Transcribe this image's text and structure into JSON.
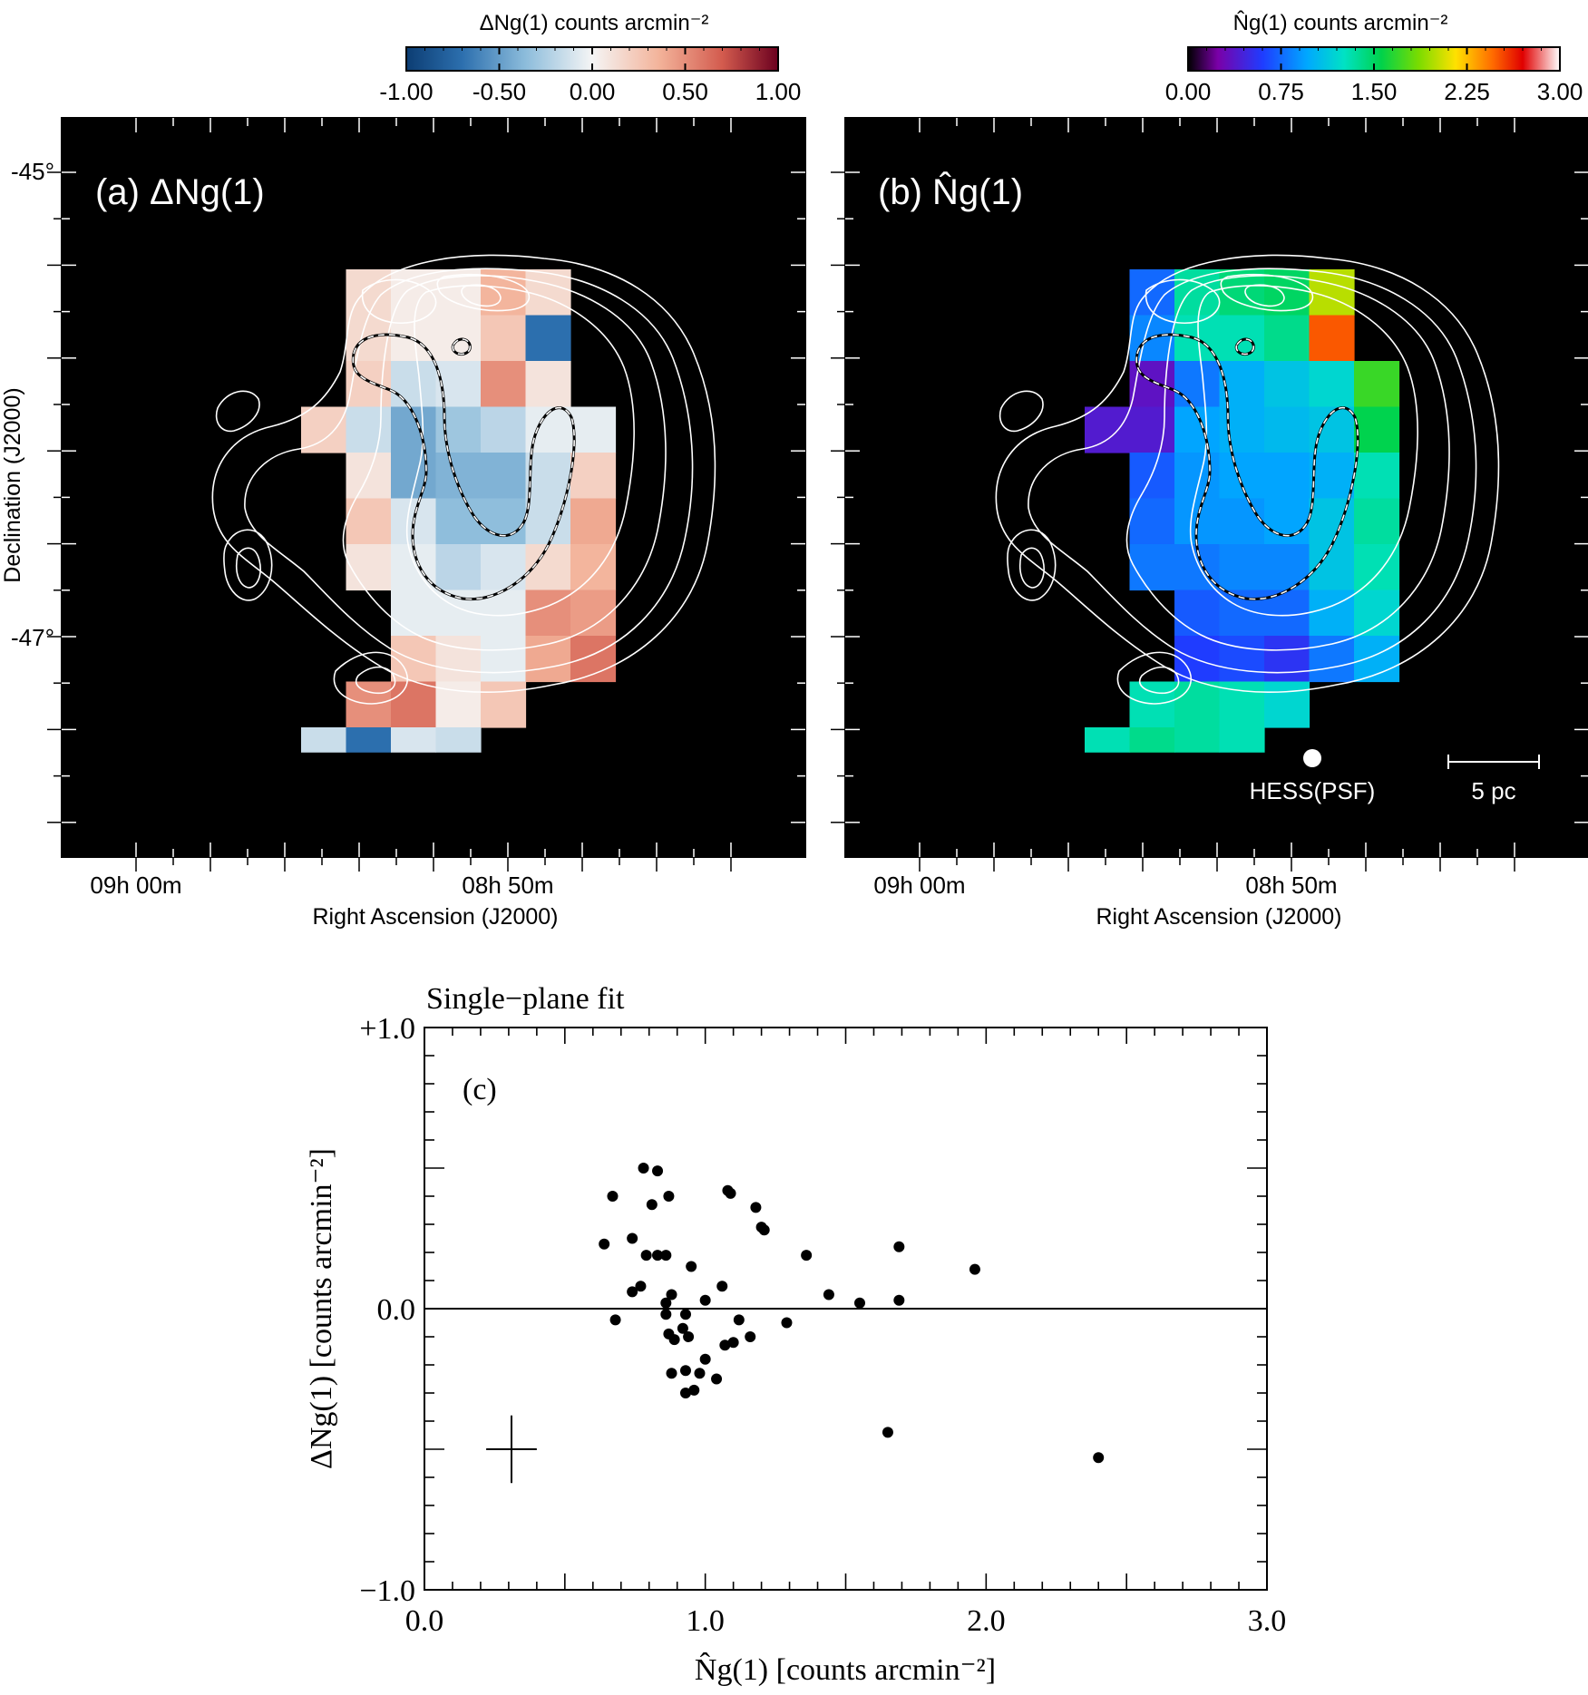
{
  "panel_a": {
    "colorbar_label": "ΔNg(1) counts arcmin⁻²",
    "colorbar_ticks": [
      "-1.00",
      "-0.50",
      "0.00",
      "0.50",
      "1.00"
    ],
    "colorbar_range": [
      -1.0,
      1.0
    ],
    "panel_label": "(a) ΔNg(1)",
    "dec_labels": [
      "-45°",
      "-47°"
    ],
    "ra_labels": [
      "09h 00m",
      "08h 50m"
    ],
    "xlabel": "Right Ascension (J2000)",
    "ylabel": "Declination (J2000)"
  },
  "panel_b": {
    "colorbar_label": "N̂g(1) counts arcmin⁻²",
    "colorbar_ticks": [
      "0.00",
      "0.75",
      "1.50",
      "2.25",
      "3.00"
    ],
    "colorbar_range": [
      0.0,
      3.0
    ],
    "panel_label": "(b) N̂g(1)",
    "ra_labels": [
      "09h 00m",
      "08h 50m"
    ],
    "xlabel": "Right Ascension (J2000)",
    "psf_label": "HESS(PSF)",
    "scale_label": "5 pc"
  },
  "colors": {
    "map_background": "#000000",
    "contour": "#ffffff"
  },
  "maps": {
    "columns": 7,
    "rows": 10,
    "delta_grid": [
      [
        null,
        0.15,
        0.05,
        0.05,
        0.35,
        0.15,
        null
      ],
      [
        null,
        0.15,
        0.05,
        0.05,
        0.25,
        -0.7,
        null
      ],
      [
        null,
        0.2,
        -0.15,
        -0.1,
        0.5,
        0.1,
        null
      ],
      [
        0.2,
        -0.15,
        -0.45,
        -0.3,
        -0.2,
        -0.05,
        -0.05
      ],
      [
        null,
        0.1,
        -0.45,
        -0.4,
        -0.4,
        -0.15,
        0.2
      ],
      [
        null,
        0.25,
        -0.1,
        -0.35,
        -0.35,
        -0.15,
        0.4
      ],
      [
        null,
        0.1,
        -0.05,
        -0.2,
        -0.1,
        0.15,
        0.35
      ],
      [
        null,
        null,
        -0.05,
        -0.05,
        -0.05,
        0.5,
        0.45
      ],
      [
        null,
        null,
        0.25,
        0.1,
        -0.05,
        0.4,
        0.6
      ],
      [
        null,
        0.5,
        0.6,
        0.05,
        0.25,
        null,
        null
      ]
    ],
    "nhat_grid": [
      [
        null,
        0.75,
        1.35,
        1.45,
        1.5,
        2.0,
        null
      ],
      [
        null,
        0.85,
        1.3,
        1.3,
        1.4,
        2.5,
        null
      ],
      [
        null,
        0.35,
        0.8,
        1.0,
        1.1,
        1.2,
        1.7
      ],
      [
        0.4,
        0.4,
        0.95,
        1.0,
        1.05,
        1.1,
        1.55
      ],
      [
        null,
        0.7,
        0.9,
        0.95,
        0.95,
        1.0,
        1.3
      ],
      [
        null,
        0.75,
        0.9,
        0.9,
        0.95,
        1.1,
        1.35
      ],
      [
        null,
        0.8,
        0.8,
        0.85,
        0.85,
        1.1,
        1.3
      ],
      [
        null,
        null,
        0.7,
        0.75,
        0.75,
        1.0,
        1.2
      ],
      [
        null,
        null,
        0.6,
        0.65,
        0.55,
        0.8,
        1.0
      ],
      [
        null,
        1.3,
        1.35,
        1.3,
        1.2,
        null,
        null
      ]
    ],
    "extra_cells_delta": [
      {
        "row": 10,
        "col": 0,
        "value": -0.15
      },
      {
        "row": 10,
        "col": 1,
        "value": -0.7
      },
      {
        "row": 10,
        "col": 2,
        "value": -0.1
      },
      {
        "row": 10,
        "col": 3,
        "value": -0.15
      }
    ],
    "extra_cells_nhat": [
      {
        "row": 10,
        "col": 0,
        "value": 1.3
      },
      {
        "row": 10,
        "col": 1,
        "value": 1.4
      },
      {
        "row": 10,
        "col": 2,
        "value": 1.35
      },
      {
        "row": 10,
        "col": 3,
        "value": 1.3
      }
    ]
  },
  "panel_c": {
    "title": "Single−plane fit",
    "panel_label": "(c)",
    "xlabel": "N̂g(1) [counts arcmin⁻²]",
    "ylabel": "ΔNg(1) [counts arcmin⁻²]",
    "x_ticks": [
      "0.0",
      "1.0",
      "2.0",
      "3.0"
    ],
    "y_ticks": [
      "+1.0",
      "0.0",
      "−1.0"
    ]
  },
  "chart_data": {
    "type": "scatter",
    "title": "Single−plane fit",
    "xlabel": "N̂g(1) [counts arcmin⁻²]",
    "ylabel": "ΔNg(1) [counts arcmin⁻²]",
    "xlim": [
      0.0,
      3.0
    ],
    "ylim": [
      -1.0,
      1.0
    ],
    "reference_line_y": 0.0,
    "error_bar": {
      "x": 0.31,
      "y": -0.5,
      "xerr": 0.09,
      "yerr": 0.12
    },
    "points": [
      [
        0.64,
        0.23
      ],
      [
        0.67,
        0.4
      ],
      [
        0.68,
        -0.04
      ],
      [
        0.74,
        0.25
      ],
      [
        0.74,
        0.06
      ],
      [
        0.77,
        0.08
      ],
      [
        0.78,
        0.5
      ],
      [
        0.79,
        0.19
      ],
      [
        0.81,
        0.37
      ],
      [
        0.83,
        0.19
      ],
      [
        0.83,
        0.49
      ],
      [
        0.86,
        0.02
      ],
      [
        0.86,
        0.19
      ],
      [
        0.86,
        -0.02
      ],
      [
        0.87,
        0.4
      ],
      [
        0.87,
        -0.09
      ],
      [
        0.88,
        -0.23
      ],
      [
        0.88,
        0.05
      ],
      [
        0.89,
        -0.11
      ],
      [
        0.92,
        -0.07
      ],
      [
        0.93,
        -0.02
      ],
      [
        0.93,
        -0.22
      ],
      [
        0.93,
        -0.3
      ],
      [
        0.94,
        -0.1
      ],
      [
        0.95,
        0.15
      ],
      [
        0.96,
        -0.29
      ],
      [
        0.98,
        -0.23
      ],
      [
        1.0,
        -0.18
      ],
      [
        1.0,
        0.03
      ],
      [
        1.04,
        -0.25
      ],
      [
        1.06,
        0.08
      ],
      [
        1.07,
        -0.13
      ],
      [
        1.08,
        0.42
      ],
      [
        1.09,
        0.41
      ],
      [
        1.1,
        -0.12
      ],
      [
        1.12,
        -0.04
      ],
      [
        1.16,
        -0.1
      ],
      [
        1.18,
        0.36
      ],
      [
        1.2,
        0.29
      ],
      [
        1.21,
        0.28
      ],
      [
        1.29,
        -0.05
      ],
      [
        1.36,
        0.19
      ],
      [
        1.44,
        0.05
      ],
      [
        1.55,
        0.02
      ],
      [
        1.65,
        -0.44
      ],
      [
        1.69,
        0.22
      ],
      [
        1.69,
        0.03
      ],
      [
        1.96,
        0.14
      ],
      [
        2.4,
        -0.53
      ]
    ]
  }
}
